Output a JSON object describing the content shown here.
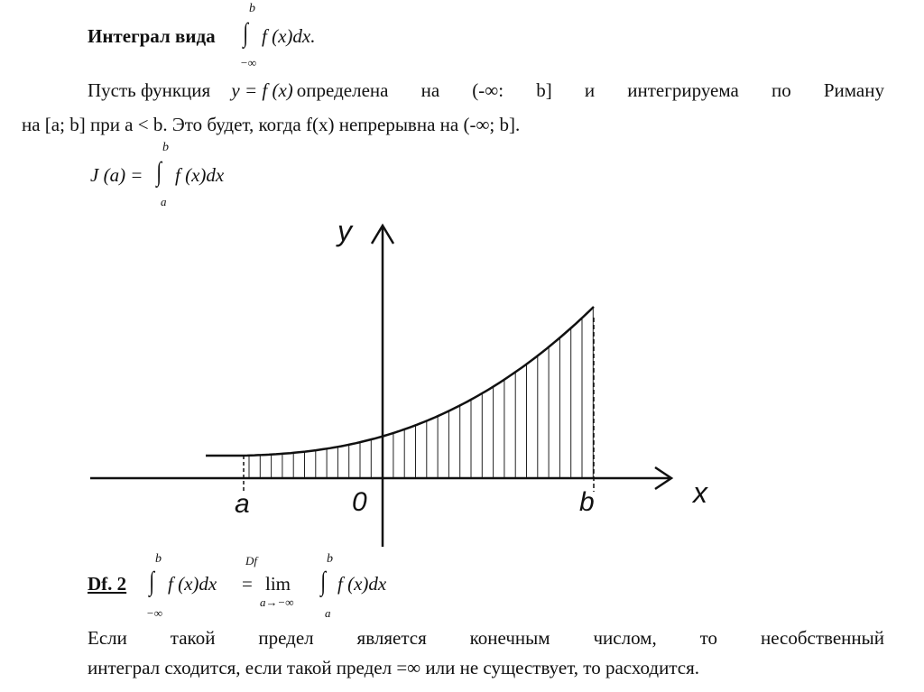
{
  "heading": {
    "label": "Интеграл вида",
    "integral_upper": "b",
    "integral_lower": "−∞",
    "integrand": "f (x)dx."
  },
  "para1": {
    "line1_start": "Пусть функция ",
    "formula": "y = f (x)",
    "line1_end": "определена на (-∞: b] и интегрируема по Риману",
    "line2": "на [a; b] при a < b. Это будет, когда f(x) непрерывна на (-∞; b]."
  },
  "formula_J": {
    "lhs": "J (a) =",
    "upper": "b",
    "lower": "a",
    "integrand": "f (x)dx"
  },
  "graph": {
    "y_label": "y",
    "x_label": "x",
    "a_label": "a",
    "zero_label": "0",
    "b_label": "b"
  },
  "definition": {
    "label": "Df. 2",
    "upper1": "b",
    "lower1": "−∞",
    "integrand1": "f (x)dx",
    "eq_over": "Df",
    "eq": "=",
    "lim": "lim",
    "lim_sub": "a→−∞",
    "upper2": "b",
    "lower2": "a",
    "integrand2": "f (x)dx"
  },
  "para2": {
    "line1": "Если такой предел является конечным числом, то несобственный",
    "line2": "интеграл сходится, если такой предел =∞ или не существует, то расходится."
  }
}
